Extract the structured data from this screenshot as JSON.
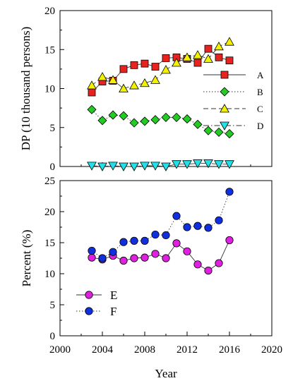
{
  "chart_data": [
    {
      "type": "line",
      "ylabel": "DP (10 thousand persons)",
      "xlim": [
        2000,
        2020
      ],
      "ylim": [
        0,
        20
      ],
      "yticks": [
        0,
        5,
        10,
        15,
        20
      ],
      "grid": false,
      "legend_position": "right",
      "x": [
        2003,
        2004,
        2005,
        2006,
        2007,
        2008,
        2009,
        2010,
        2011,
        2012,
        2013,
        2014,
        2015,
        2016
      ],
      "series": [
        {
          "name": "A",
          "marker": "square",
          "color": "#e8231f",
          "line": "solid",
          "values": [
            9.5,
            10.9,
            11.0,
            12.5,
            13.0,
            13.2,
            12.8,
            13.9,
            14.0,
            13.8,
            13.3,
            15.1,
            14.0,
            13.6
          ]
        },
        {
          "name": "B",
          "marker": "diamond",
          "color": "#22cc22",
          "line": "dotted",
          "values": [
            7.3,
            5.9,
            6.6,
            6.5,
            5.6,
            5.8,
            6.0,
            6.3,
            6.3,
            6.1,
            5.4,
            4.6,
            4.4,
            4.2
          ]
        },
        {
          "name": "C",
          "marker": "triangle-up",
          "color": "#f2f200",
          "line": "dashed",
          "values": [
            10.4,
            11.5,
            11.1,
            10.0,
            10.4,
            10.7,
            11.1,
            12.4,
            13.3,
            14.0,
            14.3,
            13.8,
            15.4,
            16.0
          ]
        },
        {
          "name": "D",
          "marker": "triangle-down",
          "color": "#22e0e8",
          "line": "dashdot",
          "values": [
            0.1,
            0.0,
            0.1,
            0.0,
            0.0,
            0.1,
            0.1,
            0.0,
            0.3,
            0.3,
            0.4,
            0.4,
            0.3,
            0.3
          ]
        }
      ]
    },
    {
      "type": "line",
      "xlabel": "Year",
      "ylabel": "Percent (%)",
      "xlim": [
        2000,
        2020
      ],
      "ylim": [
        0,
        25
      ],
      "xticks": [
        2000,
        2004,
        2008,
        2012,
        2016,
        2020
      ],
      "yticks": [
        0,
        5,
        10,
        15,
        20,
        25
      ],
      "grid": false,
      "legend_position": "bottom-left",
      "x": [
        2003,
        2004,
        2005,
        2006,
        2007,
        2008,
        2009,
        2010,
        2011,
        2012,
        2013,
        2014,
        2015,
        2016
      ],
      "series": [
        {
          "name": "E",
          "marker": "circle",
          "color": "#e020e0",
          "line": "solid",
          "values": [
            12.6,
            12.3,
            12.9,
            12.1,
            12.5,
            12.6,
            13.2,
            12.5,
            14.9,
            13.6,
            11.5,
            10.5,
            11.7,
            15.4
          ]
        },
        {
          "name": "F",
          "marker": "circle",
          "color": "#1030e0",
          "line": "dotted",
          "values": [
            13.7,
            12.5,
            13.5,
            15.1,
            15.3,
            15.3,
            16.3,
            16.2,
            19.3,
            17.5,
            17.7,
            17.4,
            18.6,
            23.2
          ]
        }
      ]
    }
  ]
}
